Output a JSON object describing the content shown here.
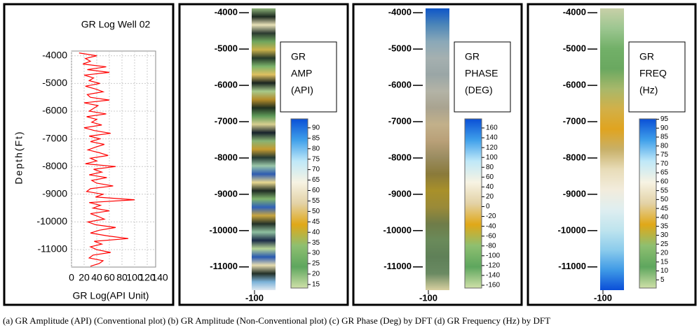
{
  "caption": "(a) GR Amplitude (API) (Conventional plot) (b) GR Amplitude (Non-Conventional plot) (c) GR Phase (Deg) by DFT (d) GR Frequency (Hz) by DFT",
  "chart_data": [
    {
      "type": "line",
      "orientation": "vertical",
      "title": "GR Log Well 02",
      "xlabel": "GR Log(API Unit)",
      "ylabel": "Depth(Ft)",
      "color": "#ff0000",
      "x": [
        -3900,
        -4000,
        -4100,
        -4200,
        -4300,
        -4400,
        -4500,
        -4600,
        -4700,
        -4800,
        -4900,
        -5000,
        -5100,
        -5200,
        -5300,
        -5400,
        -5500,
        -5600,
        -5700,
        -5800,
        -5900,
        -6000,
        -6100,
        -6200,
        -6300,
        -6400,
        -6500,
        -6600,
        -6700,
        -6800,
        -6900,
        -7000,
        -7100,
        -7200,
        -7300,
        -7400,
        -7500,
        -7600,
        -7700,
        -7800,
        -7900,
        -8000,
        -8100,
        -8200,
        -8300,
        -8400,
        -8500,
        -8600,
        -8700,
        -8800,
        -8900,
        -9000,
        -9100,
        -9200,
        -9300,
        -9400,
        -9500,
        -9600,
        -9700,
        -9800,
        -9900,
        -10000,
        -10100,
        -10200,
        -10300,
        -10400,
        -10500,
        -10600,
        -10700,
        -10800,
        -10900,
        -11000,
        -11100,
        -11200,
        -11300,
        -11400,
        -11500,
        -11600
      ],
      "values": [
        12,
        40,
        22,
        30,
        18,
        55,
        25,
        60,
        20,
        35,
        28,
        45,
        22,
        38,
        50,
        25,
        30,
        60,
        20,
        42,
        35,
        28,
        55,
        24,
        40,
        32,
        48,
        20,
        36,
        62,
        28,
        45,
        30,
        52,
        38,
        26,
        44,
        58,
        30,
        40,
        22,
        70,
        35,
        48,
        28,
        56,
        32,
        40,
        66,
        30,
        24,
        50,
        38,
        100,
        28,
        46,
        34,
        60,
        30,
        42,
        52,
        26,
        38,
        70,
        44,
        30,
        56,
        90,
        36,
        48,
        30,
        40,
        62,
        34,
        28,
        50,
        44,
        30
      ],
      "xlim": [
        0,
        140
      ],
      "xticks": [
        0,
        20,
        40,
        60,
        80,
        100,
        120,
        140
      ],
      "ylim": [
        -3830,
        -11630
      ],
      "yticks": [
        -4000,
        -5000,
        -6000,
        -7000,
        -8000,
        -9000,
        -10000,
        -11000
      ],
      "grid": true
    },
    {
      "type": "colorstrip",
      "legend_title": [
        "GR",
        "AMP",
        "(API)"
      ],
      "ylim": [
        -3880,
        -11640
      ],
      "yticks": [
        -4000,
        -5000,
        -6000,
        -7000,
        -8000,
        -9000,
        -10000,
        -11000
      ],
      "xticks": [
        -100
      ],
      "strip_colors": [
        "#8fb47a",
        "#1d2a20",
        "#e9e2b8",
        "#2b3a30",
        "#6fa55d",
        "#c9b14a",
        "#263a2a",
        "#7cb36a",
        "#e0c060",
        "#1a2520",
        "#a7c98a",
        "#b48c2a",
        "#203020",
        "#5f9a58",
        "#d8cf90",
        "#17222b",
        "#88b374",
        "#c59b30",
        "#243a34",
        "#9ac7a8",
        "#2d5bb0",
        "#e8d890",
        "#1f2c24",
        "#7fb36c",
        "#3060b8",
        "#c8a640",
        "#243228",
        "#8fc0a0",
        "#1b2c48",
        "#b6d496",
        "#2858b0",
        "#e6ddb0",
        "#233028",
        "#7bb2d8",
        "#dfe8f0"
      ],
      "cbar_colors": [
        "#0a4fd6",
        "#3fa0ea",
        "#bfe8f8",
        "#f7f3e3",
        "#e3d2a6",
        "#e0a818",
        "#8ebf70",
        "#5ea65e",
        "#cfe0a8"
      ],
      "cbar_lim": [
        94.3,
        13.3
      ],
      "cbar_ticks": [
        90,
        85,
        80,
        75,
        70,
        65,
        60,
        55,
        50,
        45,
        40,
        35,
        30,
        25,
        20,
        15
      ]
    },
    {
      "type": "colorstrip",
      "legend_title": [
        "GR",
        "PHASE",
        "(DEG)"
      ],
      "ylim": [
        -3880,
        -11640
      ],
      "yticks": [
        -4000,
        -5000,
        -6000,
        -7000,
        -8000,
        -9000,
        -10000,
        -11000
      ],
      "xticks": [
        -100
      ],
      "strip_colors": [
        "#0e56c8",
        "#4d86b8",
        "#8aa8b8",
        "#a5b0b0",
        "#9aa6a6",
        "#b3b3a6",
        "#a9a390",
        "#c2b08a",
        "#b9a078",
        "#9a8c60",
        "#8a7a3a",
        "#a8902a",
        "#9a8a38",
        "#6f7c48",
        "#6a8a5a",
        "#5f8058",
        "#6a8a62",
        "#d8d0a0"
      ],
      "cbar_colors": [
        "#0a4fd6",
        "#3fa0ea",
        "#bfe8f8",
        "#f7f3e3",
        "#e3d2a6",
        "#e0a818",
        "#8ebf70",
        "#5ea65e",
        "#cfe0a8"
      ],
      "cbar_lim": [
        178.5,
        -165.7
      ],
      "cbar_ticks": [
        160,
        140,
        120,
        100,
        80,
        60,
        40,
        20,
        0,
        -20,
        -40,
        -60,
        -80,
        -100,
        -120,
        -140,
        -160
      ]
    },
    {
      "type": "colorstrip",
      "legend_title": [
        "GR",
        "FREQ",
        "(Hz)"
      ],
      "ylim": [
        -3880,
        -11640
      ],
      "yticks": [
        -4000,
        -5000,
        -6000,
        -7000,
        -8000,
        -9000,
        -10000,
        -11000
      ],
      "xticks": [
        -100
      ],
      "strip_colors": [
        "#c8d0a8",
        "#9cc690",
        "#72b068",
        "#6aa860",
        "#a8b86a",
        "#d2b048",
        "#e0a420",
        "#c8b068",
        "#e8dcb8",
        "#f2ecdc",
        "#dfeef0",
        "#bfe4ee",
        "#8cccec",
        "#3f9ae6",
        "#0a4ed8"
      ],
      "cbar_colors": [
        "#0a4fd6",
        "#3fa0ea",
        "#bfe8f8",
        "#f7f3e3",
        "#e3d2a6",
        "#e0a818",
        "#8ebf70",
        "#5ea65e",
        "#cfe0a8"
      ],
      "cbar_lim": [
        95.2,
        0.4
      ],
      "cbar_ticks": [
        95,
        90,
        85,
        80,
        75,
        70,
        65,
        60,
        55,
        50,
        45,
        40,
        35,
        30,
        25,
        20,
        15,
        10,
        5
      ]
    }
  ]
}
